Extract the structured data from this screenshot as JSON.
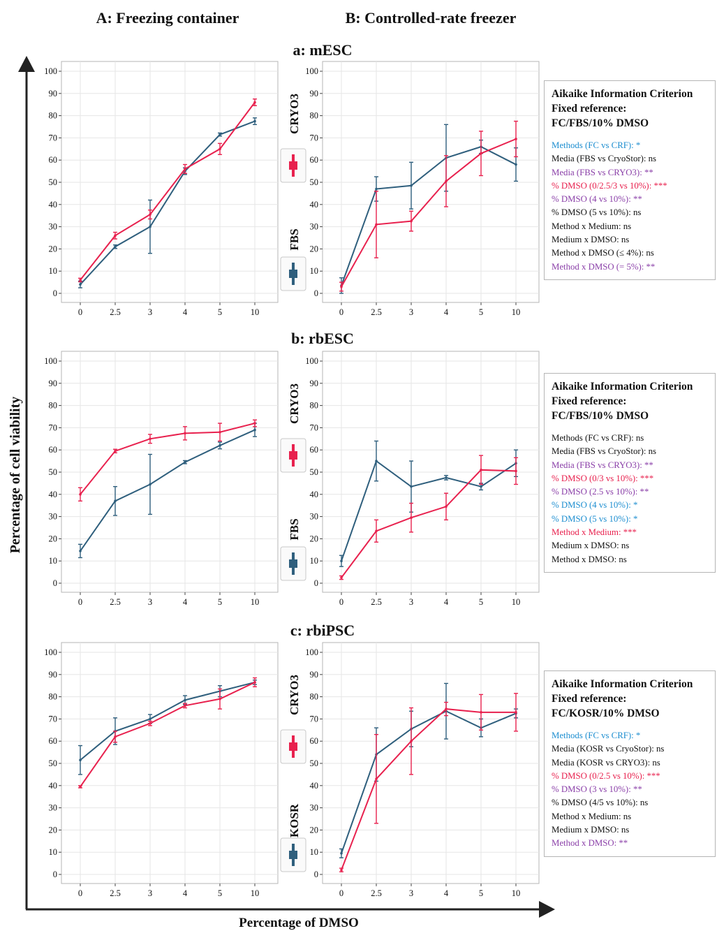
{
  "column_titles": {
    "A": "A: Freezing container",
    "B": "B: Controlled-rate freezer"
  },
  "y_axis_label": "Percentage of cell viability",
  "x_axis_label": "Percentage of DMSO",
  "colors": {
    "red": "#e8214e",
    "blue": "#2f5f7d",
    "black": "#111111",
    "purple": "#8a3fa8",
    "cyan": "#1d8ed0",
    "grid": "#e6e6e6",
    "frame": "#b5b5b5"
  },
  "legend_icons": [
    "red-cross-icon",
    "blue-cross-icon"
  ],
  "chart_data": [
    {
      "type": "line",
      "title": "a: mESC",
      "categories": [
        "0",
        "2.5",
        "3",
        "4",
        "5",
        "10"
      ],
      "ylim": [
        0,
        100
      ],
      "yticks": [
        "0",
        "10",
        "20",
        "30",
        "40",
        "50",
        "60",
        "70",
        "80",
        "90",
        "100"
      ],
      "legend": [
        "CRYO3",
        "FBS"
      ],
      "panels": [
        {
          "column": "A",
          "series": [
            {
              "name": "CRYO3",
              "color": "red",
              "values": [
                6,
                26,
                35.5,
                56,
                65,
                86
              ],
              "errors": [
                0.8,
                1.5,
                2,
                2,
                2.5,
                1.5
              ]
            },
            {
              "name": "FBS",
              "color": "blue",
              "values": [
                4,
                21,
                30,
                55,
                71.5,
                77.5
              ],
              "errors": [
                1.5,
                0.8,
                12,
                1.5,
                0.7,
                1.5
              ]
            }
          ]
        },
        {
          "column": "B",
          "series": [
            {
              "name": "CRYO3",
              "color": "red",
              "values": [
                3,
                31,
                32.5,
                50.5,
                63,
                69.5
              ],
              "errors": [
                2,
                15,
                4.5,
                11.5,
                10,
                8
              ]
            },
            {
              "name": "FBS",
              "color": "blue",
              "values": [
                3.5,
                47,
                48.5,
                61,
                66,
                58
              ],
              "errors": [
                3.5,
                5.5,
                10.5,
                15,
                3,
                7.5
              ]
            }
          ]
        }
      ],
      "stats": {
        "title_lines": [
          "Aikaike Information Criterion",
          "Fixed reference:",
          "FC/FBS/10% DMSO"
        ],
        "lines": [
          {
            "text": "Methods (FC vs CRF): *",
            "color": "cyan"
          },
          {
            "text": "Media (FBS vs CryoStor): ns",
            "color": "black"
          },
          {
            "text": "Media (FBS vs CRYO3): **",
            "color": "purple"
          },
          {
            "text": "% DMSO (0/2.5/3 vs 10%): ***",
            "color": "red"
          },
          {
            "text": "% DMSO (4 vs 10%): **",
            "color": "purple"
          },
          {
            "text": "% DMSO (5 vs 10%): ns",
            "color": "black"
          },
          {
            "text": "Method x Medium: ns",
            "color": "black"
          },
          {
            "text": "Medium x DMSO: ns",
            "color": "black"
          },
          {
            "text": "Method x DMSO (≤ 4%): ns",
            "color": "black"
          },
          {
            "text": "Method x DMSO (= 5%): **",
            "color": "purple"
          }
        ]
      }
    },
    {
      "type": "line",
      "title": "b: rbESC",
      "categories": [
        "0",
        "2.5",
        "3",
        "4",
        "5",
        "10"
      ],
      "ylim": [
        0,
        100
      ],
      "yticks": [
        "0",
        "10",
        "20",
        "30",
        "40",
        "50",
        "60",
        "70",
        "80",
        "90",
        "100"
      ],
      "legend": [
        "CRYO3",
        "FBS"
      ],
      "panels": [
        {
          "column": "A",
          "series": [
            {
              "name": "CRYO3",
              "color": "red",
              "values": [
                40,
                59.5,
                65,
                67.5,
                68,
                72
              ],
              "errors": [
                3,
                0.8,
                2,
                3,
                4,
                1.5
              ]
            },
            {
              "name": "FBS",
              "color": "blue",
              "values": [
                14.5,
                37,
                44.5,
                54.5,
                62,
                69
              ],
              "errors": [
                3,
                6.5,
                13.5,
                0.7,
                1.5,
                3
              ]
            }
          ]
        },
        {
          "column": "B",
          "series": [
            {
              "name": "CRYO3",
              "color": "red",
              "values": [
                2.5,
                23.5,
                29.5,
                34.5,
                51,
                50.5
              ],
              "errors": [
                0.8,
                5,
                6.5,
                6,
                6.5,
                6
              ]
            },
            {
              "name": "FBS",
              "color": "blue",
              "values": [
                10,
                55,
                43.5,
                47.5,
                43.5,
                54
              ],
              "errors": [
                2.5,
                9,
                11.5,
                1,
                1.5,
                6
              ]
            }
          ]
        }
      ],
      "stats": {
        "title_lines": [
          "Aikaike Information Criterion",
          "Fixed reference:",
          "FC/FBS/10% DMSO"
        ],
        "lines": [
          {
            "text": "Methods (FC vs CRF): ns",
            "color": "black"
          },
          {
            "text": "Media (FBS vs CryoStor): ns",
            "color": "black"
          },
          {
            "text": "Media (FBS vs CRYO3): **",
            "color": "purple"
          },
          {
            "text": "% DMSO (0/3 vs 10%): ***",
            "color": "red"
          },
          {
            "text": "% DMSO (2.5 vs 10%): **",
            "color": "purple"
          },
          {
            "text": "% DMSO (4 vs 10%): *",
            "color": "cyan"
          },
          {
            "text": "% DMSO (5 vs 10%): *",
            "color": "cyan"
          },
          {
            "text": "Method x Medium: ***",
            "color": "red"
          },
          {
            "text": "Medium x DMSO: ns",
            "color": "black"
          },
          {
            "text": "Method x DMSO: ns",
            "color": "black"
          }
        ]
      }
    },
    {
      "type": "line",
      "title": "c: rbiPSC",
      "categories": [
        "0",
        "2.5",
        "3",
        "4",
        "5",
        "10"
      ],
      "ylim": [
        0,
        100
      ],
      "yticks": [
        "0",
        "10",
        "20",
        "30",
        "40",
        "50",
        "60",
        "70",
        "80",
        "90",
        "100"
      ],
      "legend": [
        "CRYO3",
        "KOSR"
      ],
      "panels": [
        {
          "column": "A",
          "series": [
            {
              "name": "CRYO3",
              "color": "red",
              "values": [
                39.5,
                62,
                68,
                76,
                79,
                86.5
              ],
              "errors": [
                0.5,
                2.5,
                1,
                1,
                4.5,
                2
              ]
            },
            {
              "name": "KOSR",
              "color": "blue",
              "values": [
                51.5,
                64.5,
                70,
                78.5,
                82.5,
                86.5
              ],
              "errors": [
                6.5,
                6,
                2,
                2,
                2.5,
                1
              ]
            }
          ]
        },
        {
          "column": "B",
          "series": [
            {
              "name": "CRYO3",
              "color": "red",
              "values": [
                2,
                43,
                60,
                74.5,
                73,
                73
              ],
              "errors": [
                0.8,
                20,
                15,
                3,
                8,
                8.5
              ]
            },
            {
              "name": "KOSR",
              "color": "blue",
              "values": [
                9.5,
                54,
                65.5,
                73.5,
                66,
                72.5
              ],
              "errors": [
                2,
                12,
                8,
                12.5,
                4,
                2
              ]
            }
          ]
        }
      ],
      "stats": {
        "title_lines": [
          "Aikaike Information Criterion",
          "Fixed reference:",
          "FC/KOSR/10% DMSO"
        ],
        "lines": [
          {
            "text": "Methods (FC vs CRF): *",
            "color": "cyan"
          },
          {
            "text": "Media (KOSR vs CryoStor): ns",
            "color": "black"
          },
          {
            "text": "Media (KOSR vs CRYO3): ns",
            "color": "black"
          },
          {
            "text": "% DMSO (0/2.5 vs 10%): ***",
            "color": "red"
          },
          {
            "text": "% DMSO (3 vs 10%): **",
            "color": "purple"
          },
          {
            "text": "% DMSO (4/5 vs 10%): ns",
            "color": "black"
          },
          {
            "text": "Method x Medium: ns",
            "color": "black"
          },
          {
            "text": "Medium x DMSO: ns",
            "color": "black"
          },
          {
            "text": "Method x DMSO: **",
            "color": "purple"
          }
        ]
      }
    }
  ]
}
